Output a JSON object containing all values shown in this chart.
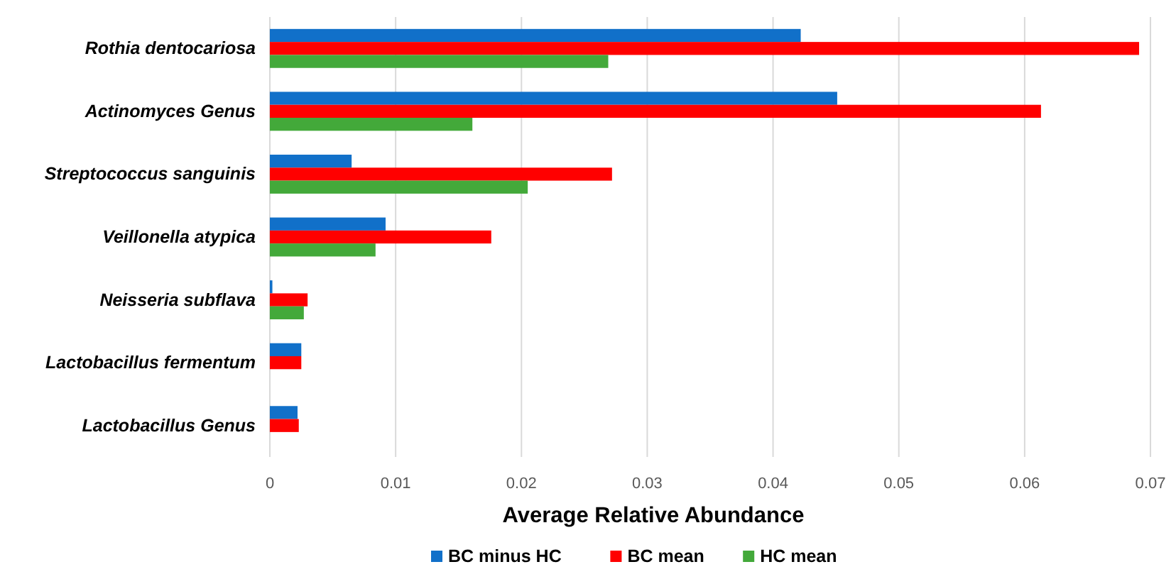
{
  "chart_data": {
    "type": "bar",
    "orientation": "horizontal",
    "xlabel": "Average Relative Abundance",
    "categories": [
      "Rothia dentocariosa",
      "Actinomyces Genus",
      "Streptococcus sanguinis",
      "Veillonella atypica",
      "Neisseria subflava",
      "Lactobacillus fermentum",
      "Lactobacillus Genus"
    ],
    "series": [
      {
        "name": "BC minus HC",
        "color": "#1170c9",
        "values": [
          0.0422,
          0.0451,
          0.0065,
          0.0092,
          0.0002,
          0.0025,
          0.0022
        ]
      },
      {
        "name": "BC mean",
        "color": "#ff0000",
        "values": [
          0.0691,
          0.0613,
          0.0272,
          0.0176,
          0.003,
          0.0025,
          0.0023
        ]
      },
      {
        "name": "HC mean",
        "color": "#43a93a",
        "values": [
          0.0269,
          0.0161,
          0.0205,
          0.0084,
          0.0027,
          0,
          0
        ]
      }
    ],
    "xlim": [
      0,
      0.07
    ],
    "xticks": [
      0,
      0.01,
      0.02,
      0.03,
      0.04,
      0.05,
      0.06,
      0.07
    ],
    "grid": "x",
    "legend": "bottom"
  }
}
